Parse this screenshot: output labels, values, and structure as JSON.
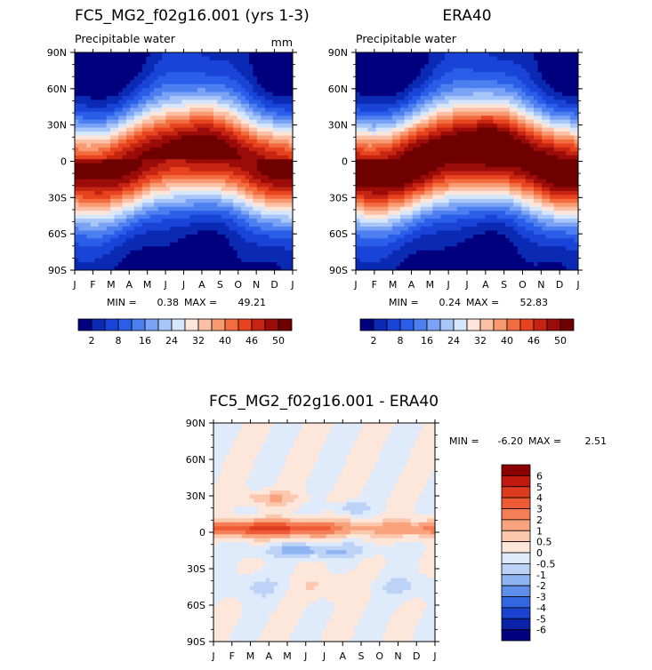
{
  "chart_data": [
    {
      "type": "heatmap",
      "title": "FC5_MG2_f02g16.001 (yrs 1-3)",
      "subtitle": "Precipitable water",
      "units": "mm",
      "x_ticks": [
        "J",
        "F",
        "M",
        "A",
        "M",
        "J",
        "J",
        "A",
        "S",
        "O",
        "N",
        "D",
        "J"
      ],
      "y_ticks": [
        "90N",
        "60N",
        "30N",
        "0",
        "30S",
        "60S",
        "90S"
      ],
      "min_label": "MIN =",
      "min_value": "0.38",
      "max_label": "MAX =",
      "max_value": "49.21",
      "colorbar_labels": [
        "2",
        "8",
        "16",
        "24",
        "32",
        "40",
        "46",
        "50"
      ],
      "colors": [
        "#00007f",
        "#0a2ab4",
        "#1a44d8",
        "#2a5ee8",
        "#4d7ff0",
        "#7aa3f5",
        "#a8c6f8",
        "#d6e6fb",
        "#fde5d9",
        "#fbc0a5",
        "#f79a72",
        "#f36c40",
        "#e8431f",
        "#c52412",
        "#9b0c08",
        "#6f0000"
      ]
    },
    {
      "type": "heatmap",
      "title": "ERA40",
      "subtitle": "Precipitable water",
      "x_ticks": [
        "J",
        "F",
        "M",
        "A",
        "M",
        "J",
        "J",
        "A",
        "S",
        "O",
        "N",
        "D",
        "J"
      ],
      "y_ticks": [
        "90N",
        "60N",
        "30N",
        "0",
        "30S",
        "60S",
        "90S"
      ],
      "min_label": "MIN =",
      "min_value": "0.24",
      "max_label": "MAX =",
      "max_value": "52.83",
      "colorbar_labels": [
        "2",
        "8",
        "16",
        "24",
        "32",
        "40",
        "46",
        "50"
      ],
      "colors": [
        "#00007f",
        "#0a2ab4",
        "#1a44d8",
        "#2a5ee8",
        "#4d7ff0",
        "#7aa3f5",
        "#a8c6f8",
        "#d6e6fb",
        "#fde5d9",
        "#fbc0a5",
        "#f79a72",
        "#f36c40",
        "#e8431f",
        "#c52412",
        "#9b0c08",
        "#6f0000"
      ]
    },
    {
      "type": "heatmap",
      "title": "FC5_MG2_f02g16.001 - ERA40",
      "x_ticks": [
        "J",
        "F",
        "M",
        "A",
        "M",
        "J",
        "J",
        "A",
        "S",
        "O",
        "N",
        "D",
        "J"
      ],
      "y_ticks": [
        "90N",
        "60N",
        "30N",
        "0",
        "30S",
        "60S",
        "90S"
      ],
      "min_label": "MIN =",
      "min_value": "-6.20",
      "max_label": "MAX =",
      "max_value": "2.51",
      "colorbar_labels": [
        "6",
        "5",
        "4",
        "3",
        "2",
        "1",
        "0.5",
        "0",
        "-0.5",
        "-1",
        "-2",
        "-3",
        "-4",
        "-5",
        "-6"
      ],
      "colors": [
        "#8b0000",
        "#c01a10",
        "#dd3a20",
        "#ee5a34",
        "#f47e55",
        "#f8a37e",
        "#fbc8ad",
        "#fde6da",
        "#dfeafa",
        "#bcd3f7",
        "#8fb4f2",
        "#5f8eea",
        "#3566e2",
        "#1a42cf",
        "#0b22a8",
        "#00007f"
      ]
    }
  ]
}
